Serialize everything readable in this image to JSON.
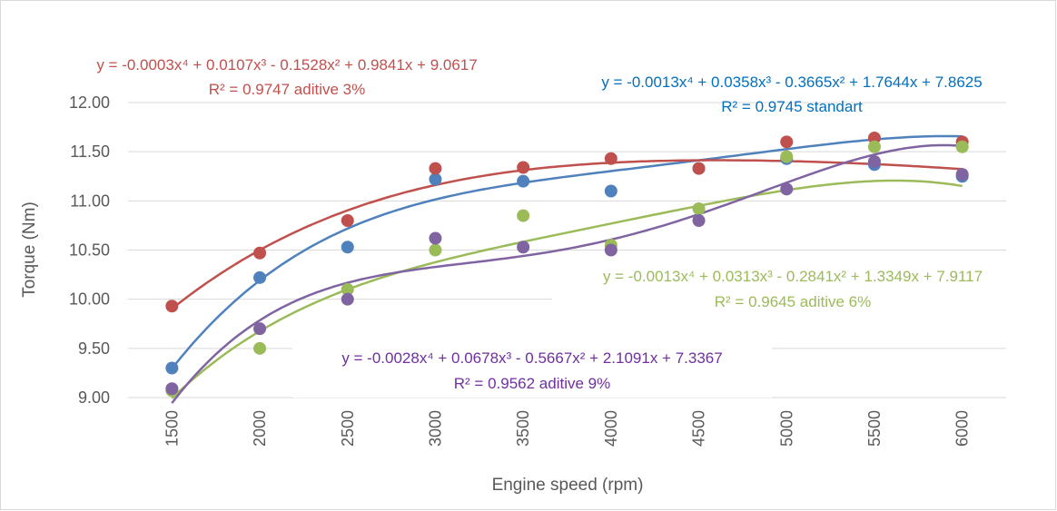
{
  "chart_data": {
    "type": "scatter",
    "x": [
      1500,
      2000,
      2500,
      3000,
      3500,
      4000,
      4500,
      5000,
      5500,
      6000
    ],
    "categories": [
      "1500",
      "2000",
      "2500",
      "3000",
      "3500",
      "4000",
      "4500",
      "5000",
      "5500",
      "6000"
    ],
    "xlabel": "Engine speed (rpm)",
    "ylabel": "Torque (Nm)",
    "ylim": [
      9.0,
      12.0
    ],
    "y_ticks": [
      "9.00",
      "9.50",
      "10.00",
      "10.50",
      "11.00",
      "11.50",
      "12.00"
    ],
    "grid": true,
    "legend": "none",
    "trendline": "polynomial, order 4 (x = category index 1..10)",
    "series": [
      {
        "name": "standart",
        "color": "#4f81bd",
        "values": [
          9.3,
          10.22,
          10.53,
          11.22,
          11.2,
          11.1,
          11.33,
          11.43,
          11.37,
          11.25
        ],
        "trend": [
          -0.0013,
          0.0358,
          -0.3665,
          1.7644,
          7.8625
        ],
        "equation": "y = -0.0013x⁴ + 0.0358x³ - 0.3665x² + 1.7644x + 7.8625",
        "r2_label": "R² = 0.9745 standart",
        "label_color": "#0070c0"
      },
      {
        "name": "aditive 3%",
        "color": "#c0504d",
        "values": [
          9.93,
          10.47,
          10.8,
          11.33,
          11.34,
          11.43,
          11.33,
          11.6,
          11.64,
          11.6
        ],
        "trend": [
          -0.0003,
          0.0107,
          -0.1528,
          0.9841,
          9.0617
        ],
        "equation": "y = -0.0003x⁴ + 0.0107x³ - 0.1528x² + 0.9841x + 9.0617",
        "r2_label": "R² = 0.9747 aditive 3%",
        "label_color": "#c0504d"
      },
      {
        "name": "aditive 6%",
        "color": "#9bbb59",
        "values": [
          9.07,
          9.5,
          10.1,
          10.5,
          10.85,
          10.55,
          10.92,
          11.45,
          11.55,
          11.55
        ],
        "trend": [
          -0.0013,
          0.0313,
          -0.2841,
          1.3349,
          7.9117
        ],
        "equation": "y = -0.0013x⁴ + 0.0313x³ - 0.2841x² + 1.3349x + 7.9117",
        "r2_label": "R² = 0.9645 aditive 6%",
        "label_color": "#9bbb59"
      },
      {
        "name": "aditive 9%",
        "color": "#8064a2",
        "values": [
          9.09,
          9.7,
          10.0,
          10.62,
          10.53,
          10.5,
          10.8,
          11.12,
          11.4,
          11.27
        ],
        "trend": [
          -0.0028,
          0.0678,
          -0.5667,
          2.1091,
          7.3367
        ],
        "equation": "y = -0.0028x⁴ + 0.0678x³ - 0.5667x² + 2.1091x + 7.3367",
        "r2_label": "R² = 0.9562 aditive 9%",
        "label_color": "#7030a0"
      }
    ]
  }
}
